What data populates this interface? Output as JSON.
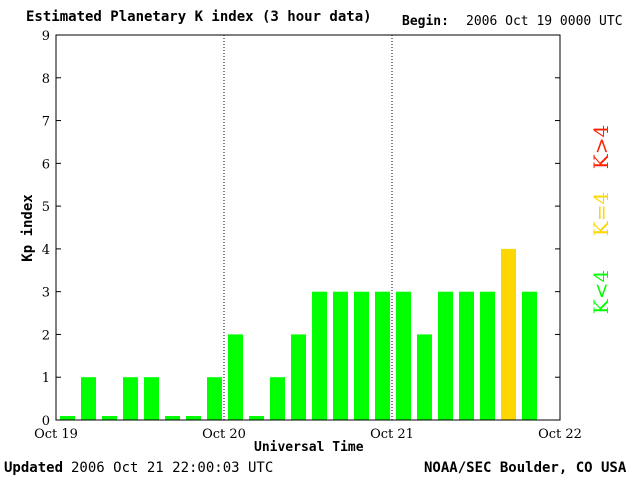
{
  "header": {
    "title": "Estimated Planetary K index (3 hour data)",
    "begin_label": "Begin:",
    "begin_value": "2006 Oct 19 0000 UTC"
  },
  "footer": {
    "updated_label": "Updated",
    "updated_value": "2006 Oct 21 22:00:03 UTC",
    "credit": "NOAA/SEC Boulder, CO USA"
  },
  "legend": {
    "items": [
      {
        "label": "K<4",
        "color": "#00ff00"
      },
      {
        "label": "K=4",
        "color": "#ffd700"
      },
      {
        "label": "K>4",
        "color": "#ff2000"
      }
    ]
  },
  "chart_data": {
    "type": "bar",
    "title": "Estimated Planetary K index (3 hour data)",
    "xlabel": "Universal Time",
    "ylabel": "Kp index",
    "ylim": [
      0,
      9
    ],
    "yticks": [
      0,
      1,
      2,
      3,
      4,
      5,
      6,
      7,
      8,
      9
    ],
    "xticks": [
      "Oct 19",
      "Oct 20",
      "Oct 21",
      "Oct 22"
    ],
    "bars_per_day": 8,
    "days": 3,
    "values": [
      0,
      1,
      0,
      1,
      1,
      0,
      0,
      1,
      2,
      0,
      1,
      2,
      3,
      3,
      3,
      3,
      3,
      2,
      3,
      3,
      3,
      4,
      3
    ],
    "colors": {
      "low": "#00ff00",
      "equal": "#ffd700",
      "high": "#ff2000"
    },
    "grid": false,
    "day_separators": "dotted"
  }
}
